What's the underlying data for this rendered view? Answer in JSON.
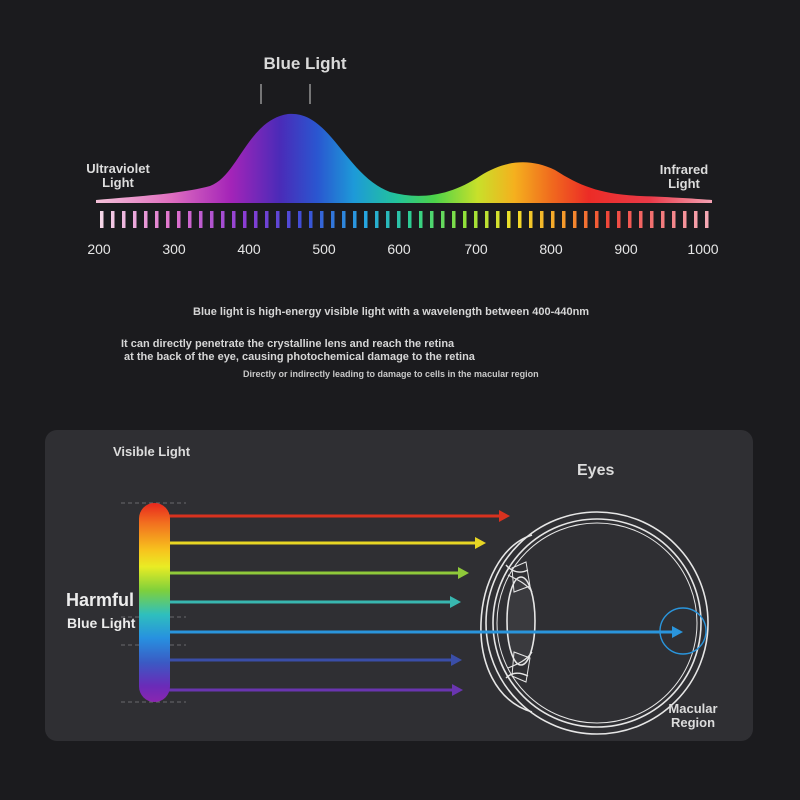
{
  "spectrum": {
    "title": "Blue Light",
    "uv_label": [
      "Ultraviolet",
      "Light"
    ],
    "ir_label": [
      "Infrared",
      "Light"
    ],
    "ticks": [
      "200",
      "300",
      "400",
      "500",
      "600",
      "700",
      "800",
      "900",
      "1000"
    ]
  },
  "info": {
    "line1": "Blue light is high-energy visible light with a wavelength between 400-440nm",
    "line2a": "It can directly penetrate the crystalline lens and reach the retina",
    "line2b": " at the back of the eye, causing photochemical damage to the retina",
    "line3": "Directly or indirectly leading to damage to cells in the macular region"
  },
  "diagram": {
    "visible_label": "Visible Light",
    "eyes_label": "Eyes",
    "harmful_label": "Harmful",
    "bluelight_label": "Blue Light",
    "macular_label": [
      "Macular",
      "Region"
    ],
    "rays": [
      {
        "color": "#d8321f"
      },
      {
        "color": "#e8d624"
      },
      {
        "color": "#8fc93a"
      },
      {
        "color": "#38b7b0"
      },
      {
        "color": "#2a95dc"
      },
      {
        "color": "#3a4ea8"
      },
      {
        "color": "#6a35b0"
      }
    ]
  }
}
